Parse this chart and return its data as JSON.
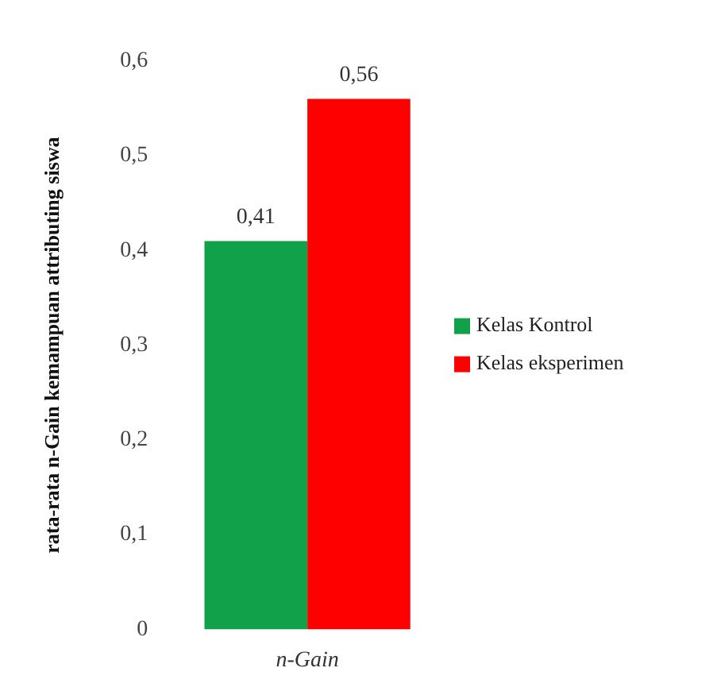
{
  "chart_data": {
    "type": "bar",
    "ylabel": "rata-rata n-Gain kemampuan attributing siswa",
    "categories": [
      "n-Gain"
    ],
    "series": [
      {
        "name": "Kelas Kontrol",
        "color": "#12a14b",
        "values": [
          0.41
        ],
        "value_labels": [
          "0,41"
        ]
      },
      {
        "name": "Kelas eksperimen",
        "color": "#ff0000",
        "values": [
          0.56
        ],
        "value_labels": [
          "0,56"
        ]
      }
    ],
    "ylim": [
      0,
      0.6
    ],
    "yticks": [
      0,
      {
        "value": 0.1,
        "label": "0,1"
      },
      {
        "value": 0.2,
        "label": "0,2"
      },
      {
        "value": 0.3,
        "label": "0,3"
      },
      {
        "value": 0.4,
        "label": "0,4"
      },
      {
        "value": 0.5,
        "label": "0,5"
      },
      {
        "value": 0.6,
        "label": "0,6"
      }
    ],
    "grid": false,
    "legend": "right"
  }
}
